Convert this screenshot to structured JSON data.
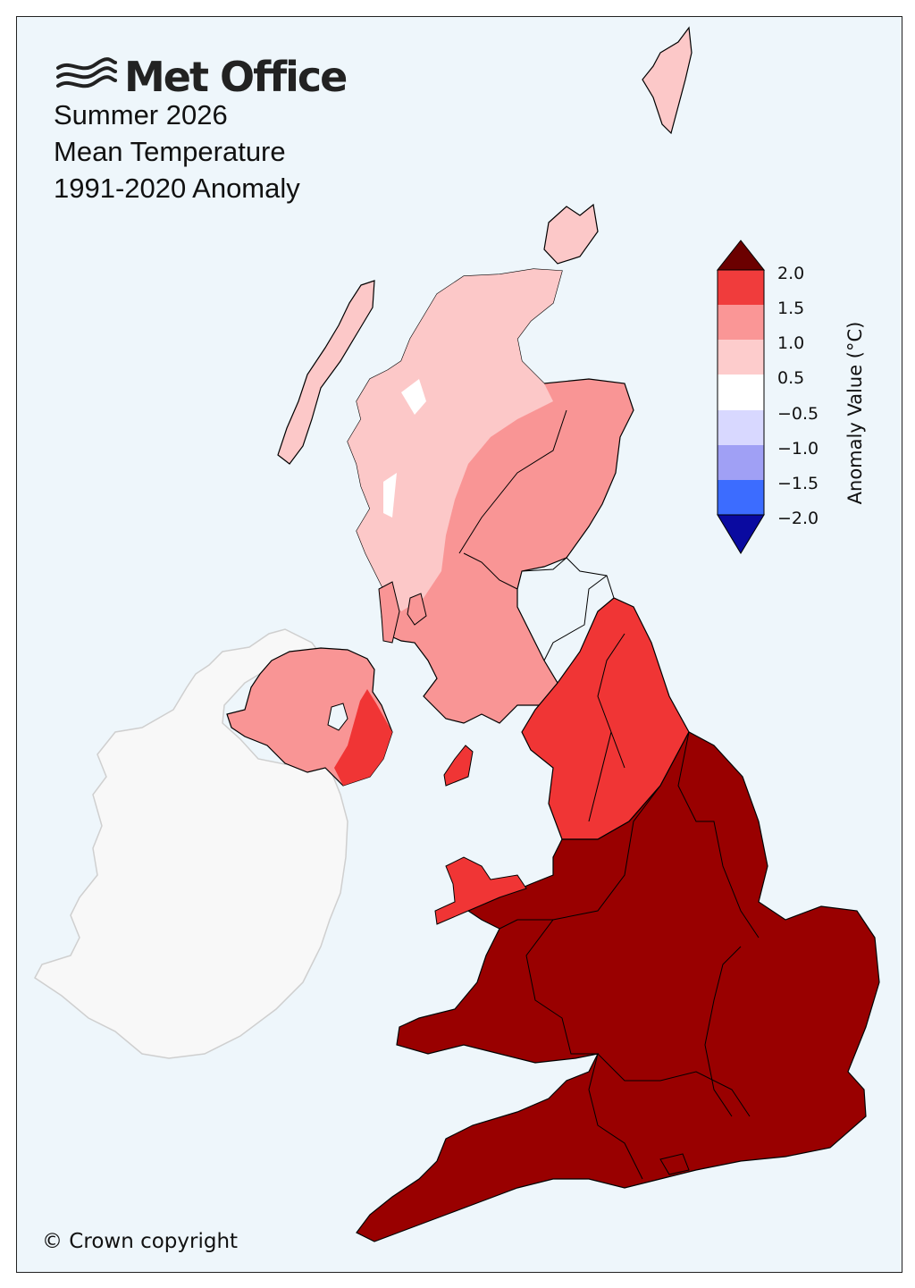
{
  "header": {
    "brand": "Met Office",
    "title_lines": [
      "Summer 2026",
      "Mean Temperature",
      "1991-2020 Anomaly"
    ]
  },
  "footer": {
    "copyright": "© Crown copyright"
  },
  "legend": {
    "label": "Anomaly Value (°C)",
    "ticks": [
      "2.0",
      "1.5",
      "1.0",
      "0.5",
      "−0.5",
      "−1.0",
      "−1.5",
      "−2.0"
    ],
    "scale_colors": [
      "#6b0000",
      "#f03c3c",
      "#fa9696",
      "#fdcccc",
      "#ffffff",
      "#d8d8ff",
      "#a0a0f5",
      "#3c6cff",
      "#0a0aa0"
    ]
  },
  "map_layers": {
    "sea": "#eef6fb",
    "not_covered_land": "#f8f8f8",
    "category_colors": {
      "over_2_0": "#990000",
      "1_5_to_2_0": "#f03535",
      "1_0_to_1_5": "#f99595",
      "0_5_to_1_0": "#fcc8c8",
      "minus_0_5_to_0_5": "#ffffff"
    }
  }
}
